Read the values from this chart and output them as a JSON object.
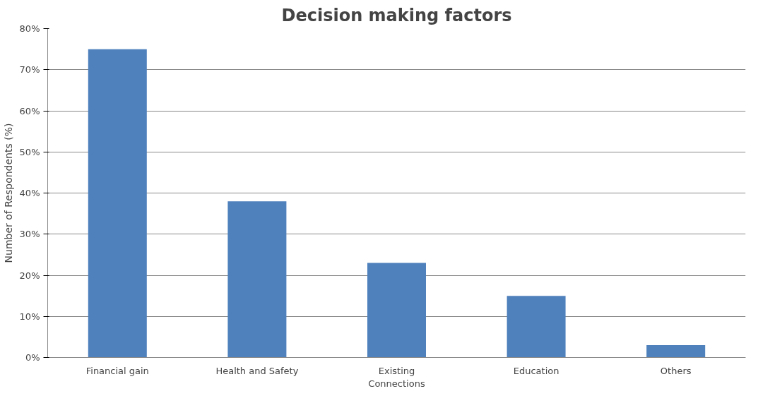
{
  "chart_data": {
    "type": "bar",
    "title": "Decision making factors",
    "ylabel": "Number of Respondents (%)",
    "categories": [
      "Financial gain",
      "Health and Safety",
      "Existing Connections",
      "Education",
      "Others"
    ],
    "values": [
      75,
      38,
      23,
      15,
      3
    ],
    "color": "#4f81bd",
    "ylim": [
      0,
      80
    ],
    "yticks": [
      {
        "value": 0,
        "label": "0%"
      },
      {
        "value": 10,
        "label": "10%"
      },
      {
        "value": 20,
        "label": "20%"
      },
      {
        "value": 30,
        "label": "30%"
      },
      {
        "value": 40,
        "label": "40%"
      },
      {
        "value": 50,
        "label": "50%"
      },
      {
        "value": 60,
        "label": "60%"
      },
      {
        "value": 70,
        "label": "70%"
      },
      {
        "value": 80,
        "label": "80%"
      }
    ],
    "grid": "y"
  }
}
